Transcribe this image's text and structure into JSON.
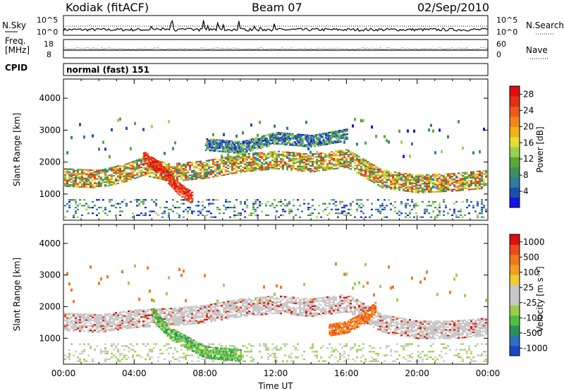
{
  "header": {
    "station": "Kodiak (fitACF)",
    "beam": "Beam 07",
    "date": "02/Sep/2010"
  },
  "noise_panel": {
    "left_label": "N.Sky",
    "right_label": "N.Search",
    "left_ticks": [
      "10^5",
      "10^0"
    ],
    "right_ticks": [
      "10^5",
      "10^0"
    ]
  },
  "freq_panel": {
    "left_label_1": "Freq.",
    "left_label_2": "[MHz]",
    "right_label": "Nave",
    "left_ticks": [
      "18",
      "8"
    ],
    "right_ticks": [
      "60",
      "0"
    ]
  },
  "cpid_panel": {
    "label": "CPID",
    "mode": "normal (fast) 151"
  },
  "chart_data": [
    {
      "type": "heatmap",
      "panel": "power",
      "ylabel": "Slant Range [km]",
      "ylim": [
        180,
        4600
      ],
      "yticks": [
        "1000",
        "2000",
        "3000",
        "4000"
      ],
      "xlim": [
        0,
        24
      ],
      "colorbar_label": "Power [dB]",
      "colorbar_ticks": [
        "4",
        "8",
        "12",
        "16",
        "20",
        "24",
        "28"
      ],
      "colorbar_colors": [
        "#1414e6",
        "#1c4fb0",
        "#2e7d9b",
        "#3f8f5e",
        "#5aa83c",
        "#9bd14a",
        "#e6df2e",
        "#f2b11a",
        "#f0851a",
        "#ee5a1a",
        "#e82d12",
        "#e00d0d"
      ],
      "features": [
        {
          "name": "main band",
          "x": [
            0,
            2,
            3.5,
            4.5,
            6,
            8,
            10,
            12,
            14,
            16,
            18,
            20,
            22,
            24
          ],
          "y": [
            1550,
            1500,
            1700,
            1900,
            1700,
            1800,
            2000,
            2100,
            2000,
            2150,
            1500,
            1350,
            1400,
            1500
          ]
        },
        {
          "name": "upper band",
          "x": [
            8,
            10,
            12,
            14,
            16
          ],
          "y": [
            2600,
            2500,
            2800,
            2700,
            2900
          ]
        },
        {
          "name": "strong echoes",
          "x": [
            4.5,
            5.5,
            6.5,
            7.3
          ],
          "y": [
            2200,
            1800,
            1200,
            900
          ]
        }
      ]
    },
    {
      "type": "heatmap",
      "panel": "velocity",
      "ylabel": "Slant Range [km]",
      "xlabel": "Time UT",
      "ylim": [
        180,
        4600
      ],
      "yticks": [
        "1000",
        "2000",
        "3000",
        "4000"
      ],
      "xlim": [
        0,
        24
      ],
      "xticks": [
        "00:00",
        "04:00",
        "08:00",
        "12:00",
        "16:00",
        "20:00",
        "00:00"
      ],
      "colorbar_label": "Velocity [m s⁻¹]",
      "colorbar_ticks": [
        "1000",
        "500",
        "100",
        "25",
        "-25",
        "-100",
        "-500",
        "-1000"
      ],
      "colorbar_colors": [
        "#1a46c8",
        "#2f6fc0",
        "#2f8f5a",
        "#4cc040",
        "#9acd4a",
        "#c8c8c8",
        "#c8c8c8",
        "#f0cc30",
        "#f0a020",
        "#f07820",
        "#ee4a18",
        "#e00e0e"
      ],
      "features": [
        {
          "name": "ground scatter band",
          "x": [
            0,
            2,
            4,
            6,
            8,
            10,
            12,
            14,
            16,
            18,
            20,
            22,
            24
          ],
          "y": [
            1550,
            1500,
            1650,
            1700,
            1800,
            2000,
            2100,
            2000,
            2150,
            1500,
            1300,
            1300,
            1400
          ]
        },
        {
          "name": "negative velocity echoes",
          "x": [
            15,
            16,
            17,
            17.6
          ],
          "y": [
            1300,
            1400,
            1700,
            2000
          ]
        },
        {
          "name": "positive velocity echoes",
          "x": [
            5,
            6,
            7,
            8,
            10
          ],
          "y": [
            1800,
            1200,
            900,
            600,
            500
          ]
        }
      ]
    }
  ]
}
